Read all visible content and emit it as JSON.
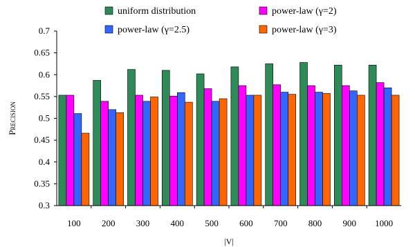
{
  "chart_data": {
    "type": "bar",
    "xlabel": "|V|",
    "ylabel": "Precision",
    "ylim": [
      0.3,
      0.7
    ],
    "yticks": [
      "0.3",
      "0.35",
      "0.4",
      "0.45",
      "0.5",
      "0.55",
      "0.6",
      "0.65",
      "0.7"
    ],
    "grid": false,
    "legend_position": "top",
    "categories": [
      "100",
      "200",
      "300",
      "400",
      "500",
      "600",
      "700",
      "800",
      "900",
      "1000"
    ],
    "series": [
      {
        "name": "uniform distribution",
        "color": "#2e8b57",
        "values": [
          0.553,
          0.587,
          0.612,
          0.61,
          0.602,
          0.618,
          0.625,
          0.628,
          0.622,
          0.622
        ]
      },
      {
        "name": "power-law (γ=2)",
        "color": "#ff00ff",
        "values": [
          0.553,
          0.539,
          0.553,
          0.551,
          0.568,
          0.575,
          0.577,
          0.575,
          0.575,
          0.582
        ]
      },
      {
        "name": "power-law (γ=2.5)",
        "color": "#3366ff",
        "values": [
          0.511,
          0.52,
          0.539,
          0.559,
          0.539,
          0.553,
          0.56,
          0.56,
          0.563,
          0.57
        ]
      },
      {
        "name": "power-law (γ=3)",
        "color": "#ff6600",
        "values": [
          0.466,
          0.513,
          0.549,
          0.537,
          0.545,
          0.553,
          0.555,
          0.557,
          0.553,
          0.553
        ]
      }
    ]
  }
}
